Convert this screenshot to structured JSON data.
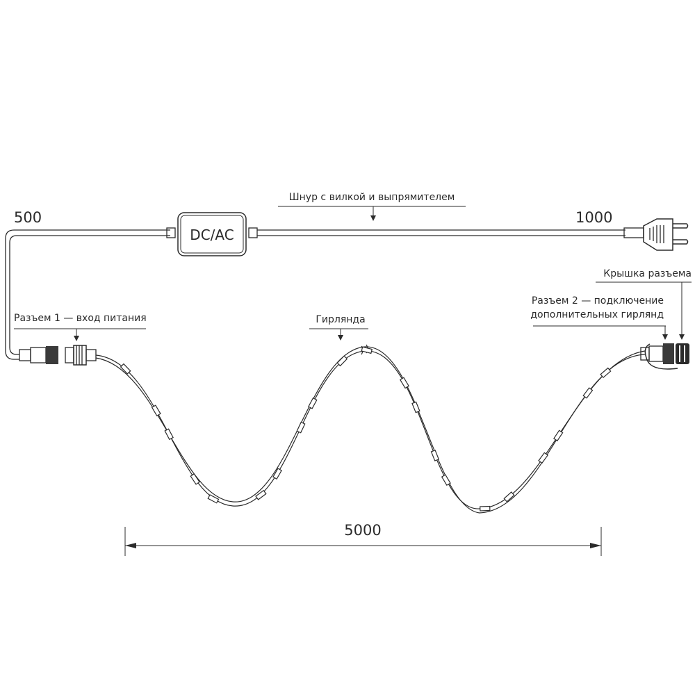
{
  "labels": {
    "cord": "Шнур с вилкой и выпрямителем",
    "len_left": "500",
    "len_right": "1000",
    "box": "DC/AC",
    "connector1": "Разъем 1 — вход питания",
    "garland": "Гирлянда",
    "cap": "Крышка разъема",
    "connector2_line1": "Разъем 2 — подключение",
    "connector2_line2": "дополнительных гирлянд",
    "length_main": "5000"
  },
  "colors": {
    "line": "#2b2b2b",
    "background": "#ffffff"
  }
}
